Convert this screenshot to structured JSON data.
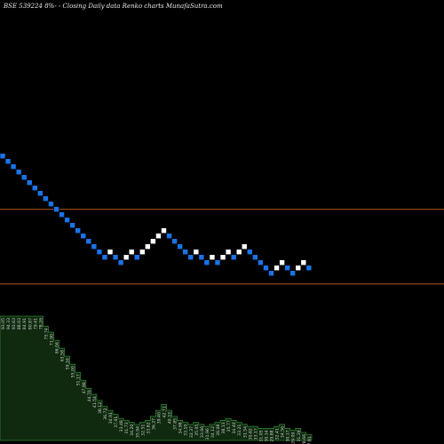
{
  "chart_data": {
    "type": "renko",
    "title": "BSE 539224  8%- -  Closing Daily data  Renko  charts MunafaSutra.com",
    "colors": {
      "background": "#000000",
      "down_brick": "#1a73e8",
      "up_brick": "#ffffff",
      "reference_line": "#b3541e",
      "volume_fill": "#0f2a0f",
      "volume_edge": "#2e7d32",
      "label_text": "#cfcfcf"
    },
    "y_scale": [
      0,
      60
    ],
    "reference_levels": [
      {
        "value": 45
      },
      {
        "value": 31
      }
    ],
    "bricks": [
      {
        "dir": "down",
        "level": 55
      },
      {
        "dir": "down",
        "level": 54
      },
      {
        "dir": "down",
        "level": 53
      },
      {
        "dir": "down",
        "level": 52
      },
      {
        "dir": "down",
        "level": 51
      },
      {
        "dir": "down",
        "level": 50
      },
      {
        "dir": "down",
        "level": 49
      },
      {
        "dir": "down",
        "level": 48
      },
      {
        "dir": "down",
        "level": 47
      },
      {
        "dir": "down",
        "level": 46
      },
      {
        "dir": "down",
        "level": 45
      },
      {
        "dir": "down",
        "level": 44
      },
      {
        "dir": "down",
        "level": 43
      },
      {
        "dir": "down",
        "level": 42
      },
      {
        "dir": "down",
        "level": 41
      },
      {
        "dir": "down",
        "level": 40
      },
      {
        "dir": "down",
        "level": 39
      },
      {
        "dir": "down",
        "level": 38
      },
      {
        "dir": "down",
        "level": 37
      },
      {
        "dir": "down",
        "level": 36
      },
      {
        "dir": "up",
        "level": 37
      },
      {
        "dir": "down",
        "level": 36
      },
      {
        "dir": "down",
        "level": 35
      },
      {
        "dir": "up",
        "level": 36
      },
      {
        "dir": "up",
        "level": 37
      },
      {
        "dir": "down",
        "level": 36
      },
      {
        "dir": "up",
        "level": 37
      },
      {
        "dir": "up",
        "level": 38
      },
      {
        "dir": "up",
        "level": 39
      },
      {
        "dir": "up",
        "level": 40
      },
      {
        "dir": "up",
        "level": 41
      },
      {
        "dir": "down",
        "level": 40
      },
      {
        "dir": "down",
        "level": 39
      },
      {
        "dir": "down",
        "level": 38
      },
      {
        "dir": "down",
        "level": 37
      },
      {
        "dir": "down",
        "level": 36
      },
      {
        "dir": "up",
        "level": 37
      },
      {
        "dir": "down",
        "level": 36
      },
      {
        "dir": "down",
        "level": 35
      },
      {
        "dir": "up",
        "level": 36
      },
      {
        "dir": "down",
        "level": 35
      },
      {
        "dir": "up",
        "level": 36
      },
      {
        "dir": "up",
        "level": 37
      },
      {
        "dir": "down",
        "level": 36
      },
      {
        "dir": "up",
        "level": 37
      },
      {
        "dir": "up",
        "level": 38
      },
      {
        "dir": "down",
        "level": 37
      },
      {
        "dir": "down",
        "level": 36
      },
      {
        "dir": "down",
        "level": 35
      },
      {
        "dir": "down",
        "level": 34
      },
      {
        "dir": "down",
        "level": 33
      },
      {
        "dir": "up",
        "level": 34
      },
      {
        "dir": "up",
        "level": 35
      },
      {
        "dir": "down",
        "level": 34
      },
      {
        "dir": "down",
        "level": 33
      },
      {
        "dir": "up",
        "level": 34
      },
      {
        "dir": "up",
        "level": 35
      },
      {
        "dir": "down",
        "level": 34
      }
    ],
    "volume": [
      62,
      62,
      62,
      62,
      62,
      62,
      62,
      62,
      57,
      54,
      50,
      46,
      42,
      38,
      34,
      30,
      26,
      23,
      20,
      17,
      15,
      13,
      11,
      10,
      9,
      8,
      9,
      10,
      12,
      15,
      18,
      15,
      12,
      10,
      9,
      8,
      9,
      8,
      7,
      8,
      9,
      10,
      11,
      10,
      9,
      8,
      7,
      7,
      6,
      6,
      6,
      7,
      8,
      6,
      5,
      6,
      4,
      3
    ],
    "labels": [
      "93.05",
      "94.33",
      "93.63",
      "88.63",
      "84.91",
      "80.87",
      "79.41",
      "78.26",
      "75.74",
      "71.90",
      "66.04",
      "63.58",
      "59.16",
      "55.00",
      "51.17",
      "47.98",
      "44.70",
      "41.54",
      "38.12",
      "36.72",
      "34.91",
      "37.01",
      "33.48",
      "31.73",
      "34.20",
      "35.94",
      "32.51",
      "33.82",
      "36.27",
      "39.40",
      "42.71",
      "40.33",
      "37.85",
      "34.98",
      "33.10",
      "32.37",
      "35.05",
      "33.66",
      "31.96",
      "34.12",
      "36.08",
      "38.13",
      "35.77",
      "34.40",
      "33.21",
      "31.54",
      "30.82",
      "33.17",
      "31.05",
      "30.14",
      "29.88",
      "32.41",
      "34.56",
      "30.17",
      "29.09",
      "31.39",
      "28.66",
      "27.91"
    ]
  }
}
